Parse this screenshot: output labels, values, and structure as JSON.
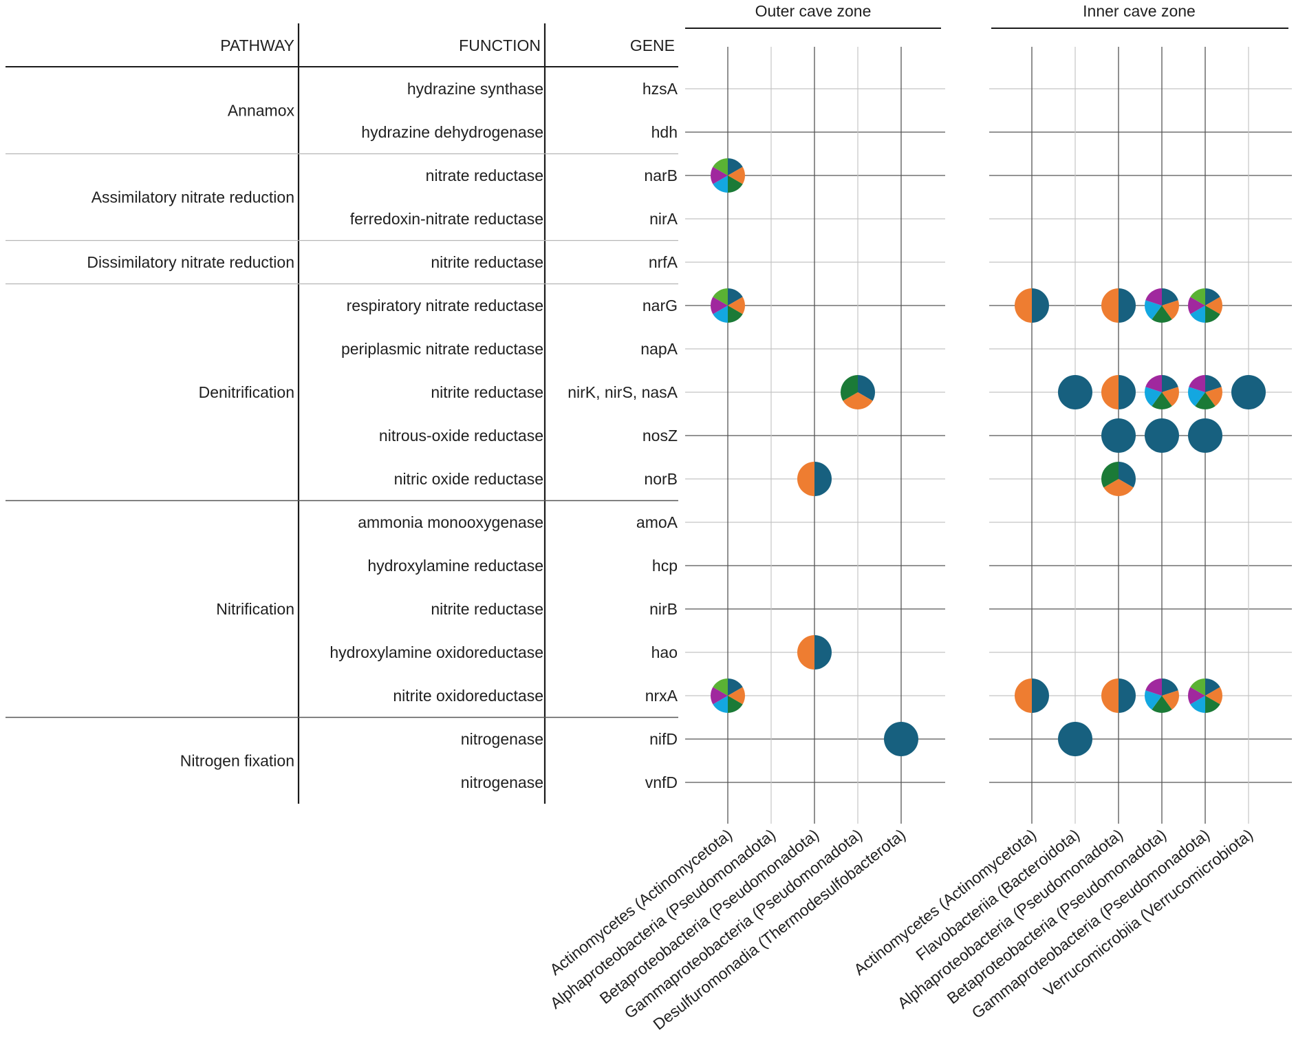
{
  "chart_data": {
    "type": "pie-matrix",
    "headers": {
      "pathway": "PATHWAY",
      "function": "FUNCTION",
      "gene": "GENE"
    },
    "groups": [
      {
        "pathway": "Annamox",
        "rows": [
          {
            "function": "hydrazine synthase",
            "gene": "hzsA"
          },
          {
            "function": "hydrazine dehydrogenase",
            "gene": "hdh"
          }
        ]
      },
      {
        "pathway": "Assimilatory nitrate reduction",
        "rows": [
          {
            "function": "nitrate reductase",
            "gene": "narB"
          },
          {
            "function": "ferredoxin-nitrate reductase",
            "gene": "nirA"
          }
        ]
      },
      {
        "pathway": "Dissimilatory nitrate reduction",
        "rows": [
          {
            "function": "nitrite reductase",
            "gene": "nrfA"
          }
        ]
      },
      {
        "pathway": "Denitrification",
        "rows": [
          {
            "function": "respiratory nitrate reductase",
            "gene": "narG"
          },
          {
            "function": "periplasmic nitrate reductase",
            "gene": "napA"
          },
          {
            "function": "nitrite reductase",
            "gene": "nirK, nirS, nasA"
          },
          {
            "function": "nitrous-oxide reductase",
            "gene": "nosZ"
          },
          {
            "function": "nitric oxide reductase",
            "gene": "norB"
          }
        ]
      },
      {
        "pathway": "Nitrification",
        "rows": [
          {
            "function": "ammonia monooxygenase",
            "gene": "amoA"
          },
          {
            "function": "hydroxylamine reductase",
            "gene": "hcp"
          },
          {
            "function": "nitrite reductase",
            "gene": "nirB"
          },
          {
            "function": "hydroxylamine oxidoreductase",
            "gene": "hao"
          },
          {
            "function": "nitrite oxidoreductase",
            "gene": "nrxA"
          }
        ]
      },
      {
        "pathway": "Nitrogen fixation",
        "rows": [
          {
            "function": "nitrogenase",
            "gene": "nifD"
          },
          {
            "function": "nitrogenase",
            "gene": "vnfD"
          }
        ]
      }
    ],
    "zones": [
      {
        "title": "Outer cave zone",
        "taxa": [
          "Actinomycetes (Actinomycetota)",
          "Alphaproteobacteria (Pseudomonadota)",
          "Betaproteobacteria (Pseudomonadota)",
          "Gammaproteobacteria (Pseudomonadota)",
          "Desulfuromonadia (Thermodesulfobacterota)"
        ]
      },
      {
        "title": "Inner cave zone",
        "taxa": [
          "Actinomycetes (Actinomycetota)",
          "Flavobacteriia (Bacteroidota)",
          "Alphaproteobacteria (Pseudomonadota)",
          "Betaproteobacteria (Pseudomonadota)",
          "Gammaproteobacteria (Pseudomonadota)",
          "Verrucomicrobiia (Verrucomicrobiota)"
        ]
      }
    ],
    "slice_colors": {
      "A": "#17607f",
      "B": "#ee7d31",
      "C": "#1b7a37",
      "D": "#13a7e0",
      "E": "#a0289e",
      "F": "#5ab234"
    },
    "pie_types": {
      "six": [
        "A",
        "B",
        "C",
        "D",
        "E",
        "F"
      ],
      "fiveA": [
        "A",
        "B",
        "C",
        "D",
        "E"
      ],
      "half": [
        "A",
        "B"
      ],
      "three": [
        "A",
        "B",
        "C"
      ],
      "full": [
        "A"
      ]
    },
    "pies": [
      {
        "zone": 0,
        "taxon": 0,
        "gene": "narB",
        "pie": "six"
      },
      {
        "zone": 0,
        "taxon": 0,
        "gene": "narG",
        "pie": "six"
      },
      {
        "zone": 0,
        "taxon": 3,
        "gene": "nirK, nirS, nasA",
        "pie": "three"
      },
      {
        "zone": 0,
        "taxon": 2,
        "gene": "norB",
        "pie": "half"
      },
      {
        "zone": 0,
        "taxon": 2,
        "gene": "hao",
        "pie": "half"
      },
      {
        "zone": 0,
        "taxon": 0,
        "gene": "nrxA",
        "pie": "six"
      },
      {
        "zone": 0,
        "taxon": 4,
        "gene": "nifD",
        "pie": "full"
      },
      {
        "zone": 1,
        "taxon": 0,
        "gene": "narG",
        "pie": "half"
      },
      {
        "zone": 1,
        "taxon": 2,
        "gene": "narG",
        "pie": "half"
      },
      {
        "zone": 1,
        "taxon": 3,
        "gene": "narG",
        "pie": "fiveA"
      },
      {
        "zone": 1,
        "taxon": 4,
        "gene": "narG",
        "pie": "six"
      },
      {
        "zone": 1,
        "taxon": 1,
        "gene": "nirK, nirS, nasA",
        "pie": "full"
      },
      {
        "zone": 1,
        "taxon": 2,
        "gene": "nirK, nirS, nasA",
        "pie": "half"
      },
      {
        "zone": 1,
        "taxon": 3,
        "gene": "nirK, nirS, nasA",
        "pie": "fiveA"
      },
      {
        "zone": 1,
        "taxon": 4,
        "gene": "nirK, nirS, nasA",
        "pie": "fiveA"
      },
      {
        "zone": 1,
        "taxon": 5,
        "gene": "nirK, nirS, nasA",
        "pie": "full"
      },
      {
        "zone": 1,
        "taxon": 2,
        "gene": "nosZ",
        "pie": "full"
      },
      {
        "zone": 1,
        "taxon": 3,
        "gene": "nosZ",
        "pie": "full"
      },
      {
        "zone": 1,
        "taxon": 4,
        "gene": "nosZ",
        "pie": "full"
      },
      {
        "zone": 1,
        "taxon": 2,
        "gene": "norB",
        "pie": "three"
      },
      {
        "zone": 1,
        "taxon": 0,
        "gene": "nrxA",
        "pie": "half"
      },
      {
        "zone": 1,
        "taxon": 2,
        "gene": "nrxA",
        "pie": "half"
      },
      {
        "zone": 1,
        "taxon": 3,
        "gene": "nrxA",
        "pie": "fiveA"
      },
      {
        "zone": 1,
        "taxon": 4,
        "gene": "nrxA",
        "pie": "six"
      },
      {
        "zone": 1,
        "taxon": 1,
        "gene": "nifD",
        "pie": "full"
      }
    ]
  }
}
